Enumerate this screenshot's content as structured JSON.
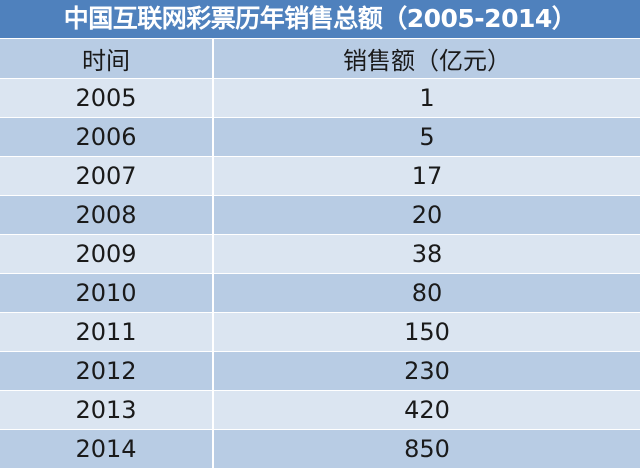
{
  "title": "中国互联网彩票历年销售总额（2005-2014）",
  "columns": [
    "时间",
    "销售额（亿元）"
  ],
  "rows": [
    {
      "year": "2005",
      "sales": "1"
    },
    {
      "year": "2006",
      "sales": "5"
    },
    {
      "year": "2007",
      "sales": "17"
    },
    {
      "year": "2008",
      "sales": "20"
    },
    {
      "year": "2009",
      "sales": "38"
    },
    {
      "year": "2010",
      "sales": "80"
    },
    {
      "year": "2011",
      "sales": "150"
    },
    {
      "year": "2012",
      "sales": "230"
    },
    {
      "year": "2013",
      "sales": "420"
    },
    {
      "year": "2014",
      "sales": "850"
    }
  ],
  "colors": {
    "title_bg": "#4f81bd",
    "header_bg": "#b8cce4",
    "row_light": "#dbe5f1",
    "row_dark": "#b8cce4"
  }
}
